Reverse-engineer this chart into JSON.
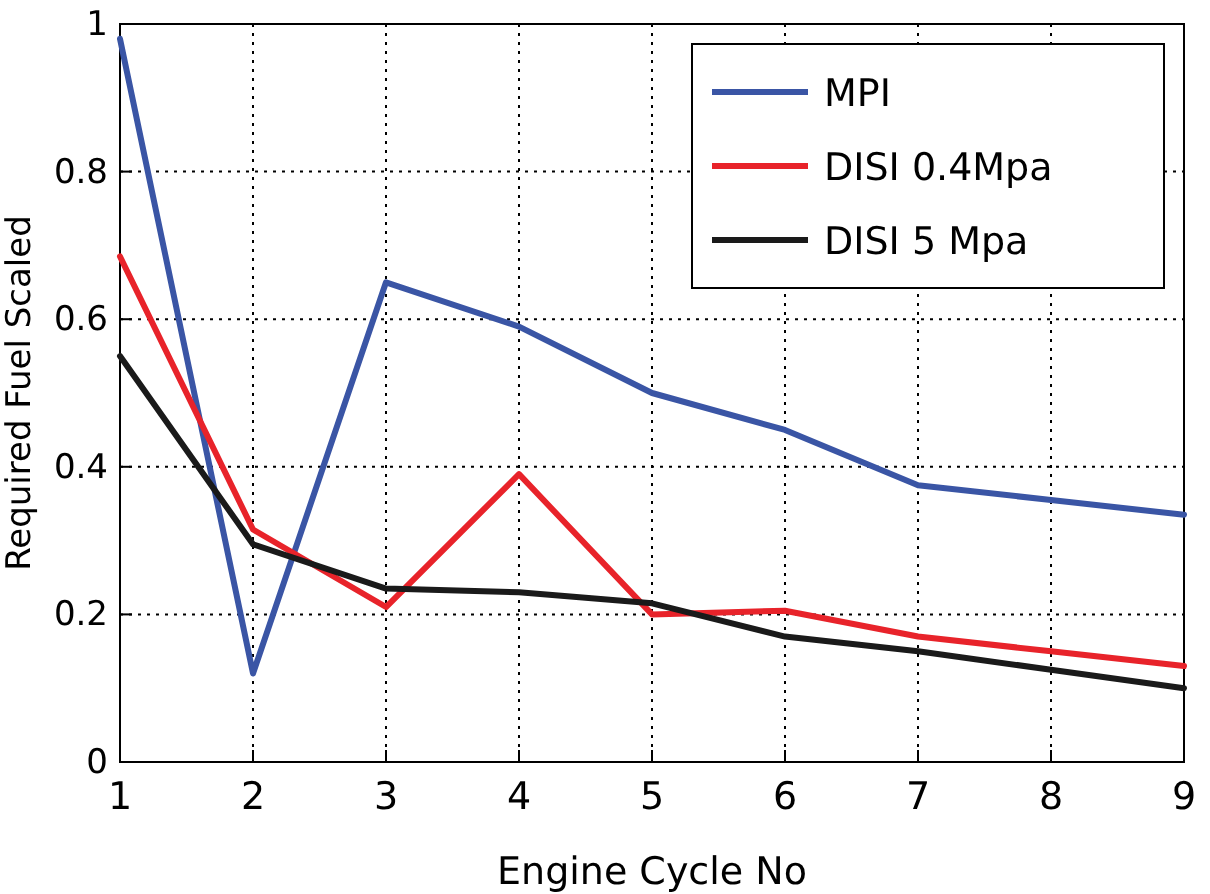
{
  "chart_data": {
    "type": "line",
    "xlabel": "Engine Cycle No",
    "ylabel": "Required Fuel Scaled",
    "x": [
      1,
      2,
      3,
      4,
      5,
      6,
      7,
      8,
      9
    ],
    "series": [
      {
        "name": "MPI",
        "color": "#3a55a5",
        "values": [
          0.98,
          0.12,
          0.65,
          0.59,
          0.5,
          0.45,
          0.375,
          0.355,
          0.335
        ]
      },
      {
        "name": "DISI 0.4Mpa",
        "color": "#e8232a",
        "values": [
          0.685,
          0.315,
          0.21,
          0.39,
          0.2,
          0.205,
          0.17,
          0.15,
          0.13
        ]
      },
      {
        "name": "DISI 5 Mpa",
        "color": "#1a1a1a",
        "values": [
          0.55,
          0.295,
          0.235,
          0.23,
          0.215,
          0.17,
          0.15,
          0.125,
          0.1
        ]
      }
    ],
    "xlim": [
      1,
      9
    ],
    "xticks": [
      1,
      2,
      3,
      4,
      5,
      6,
      7,
      8,
      9
    ],
    "ylim": [
      0,
      1
    ],
    "yticks": [
      0,
      0.2,
      0.4,
      0.6,
      0.8,
      1
    ],
    "grid": true,
    "legend": "top right",
    "line_style": "solid",
    "marker": "none"
  }
}
